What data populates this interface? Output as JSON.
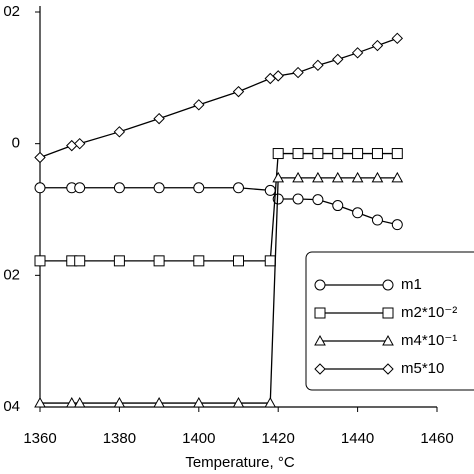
{
  "chart_data": {
    "type": "line",
    "xlabel": "Temperature, °C",
    "x": [
      1360,
      1368,
      1370,
      1380,
      1390,
      1400,
      1410,
      1418,
      1420,
      1425,
      1430,
      1435,
      1440,
      1445,
      1450
    ],
    "series": [
      {
        "name": "m1",
        "color": "#000000",
        "marker": "circle",
        "values": [
          -0.0067,
          -0.0067,
          -0.0067,
          -0.0067,
          -0.0067,
          -0.0067,
          -0.0067,
          -0.0071,
          -0.0084,
          -0.0084,
          -0.0085,
          -0.0094,
          -0.0105,
          -0.0116,
          -0.0123
        ]
      },
      {
        "name": "m2*10⁻²",
        "color": "#000000",
        "marker": "square",
        "values": [
          -0.0178,
          -0.0178,
          -0.0178,
          -0.0178,
          -0.0178,
          -0.0178,
          -0.0178,
          -0.0178,
          -0.0015,
          -0.0015,
          -0.0015,
          -0.0015,
          -0.0015,
          -0.0015,
          -0.0015
        ]
      },
      {
        "name": "m4*10⁻¹",
        "color": "#000000",
        "marker": "triangle",
        "values": [
          -0.0394,
          -0.0394,
          -0.0394,
          -0.0394,
          -0.0394,
          -0.0394,
          -0.0394,
          -0.0394,
          -0.0052,
          -0.0052,
          -0.0052,
          -0.0052,
          -0.0052,
          -0.0052,
          -0.0052
        ]
      },
      {
        "name": "m5*10",
        "color": "#000000",
        "marker": "diamond",
        "values": [
          -0.0021,
          -0.0003,
          0.0,
          0.0018,
          0.0038,
          0.0059,
          0.0079,
          0.0099,
          0.0103,
          0.0108,
          0.0119,
          0.0128,
          0.0138,
          0.0149,
          0.016
        ]
      }
    ],
    "xlim": [
      1360,
      1460
    ],
    "xticks": [
      1360,
      1380,
      1400,
      1420,
      1440,
      1460
    ],
    "ylim": [
      -0.04,
      0.02
    ],
    "yticks": [
      {
        "value": 0.02,
        "label": "02"
      },
      0,
      {
        "value": -0.02,
        "label": "02"
      },
      {
        "value": -0.04,
        "label": "04"
      }
    ],
    "legend": "lower right",
    "grid": false
  }
}
